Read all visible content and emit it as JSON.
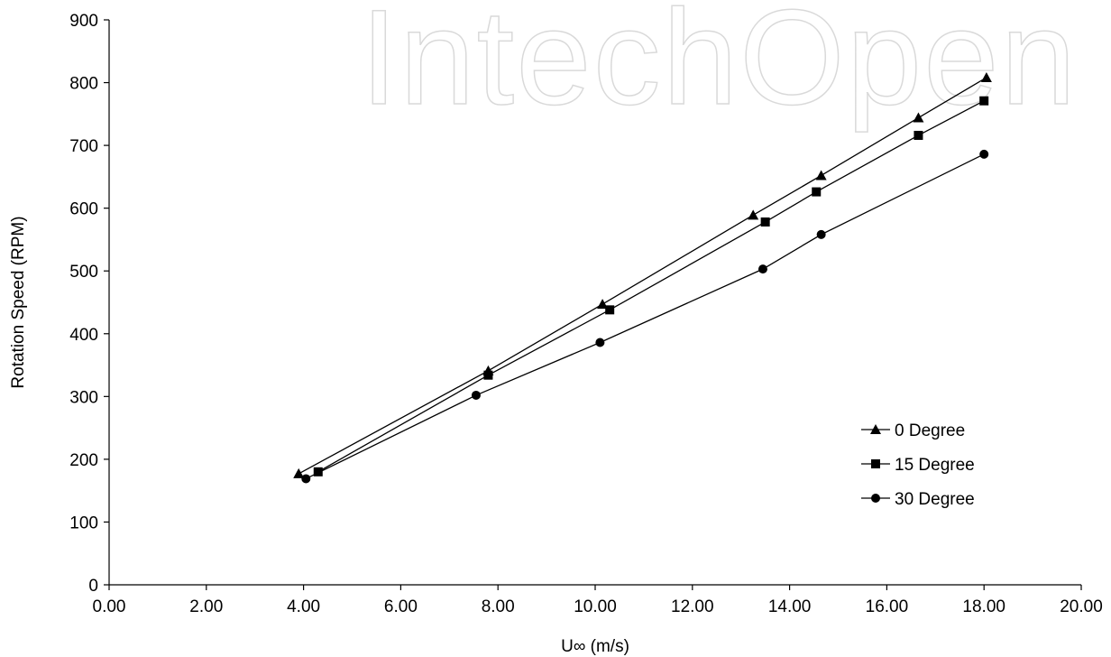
{
  "watermark_text": "IntechOpen",
  "chart_data": {
    "type": "line",
    "xlabel": "U∞ (m/s)",
    "ylabel": "Rotation Speed (RPM)",
    "xlim": [
      0,
      20
    ],
    "ylim": [
      0,
      900
    ],
    "x_ticks": [
      "0.00",
      "2.00",
      "4.00",
      "6.00",
      "8.00",
      "10.00",
      "12.00",
      "14.00",
      "16.00",
      "18.00",
      "20.00"
    ],
    "y_ticks": [
      "0",
      "100",
      "200",
      "300",
      "400",
      "500",
      "600",
      "700",
      "800",
      "900"
    ],
    "grid": false,
    "legend_position": "lower-right",
    "series": [
      {
        "name": "0 Degree",
        "marker": "triangle",
        "x": [
          3.9,
          7.8,
          10.15,
          13.25,
          14.65,
          16.65,
          18.05
        ],
        "y": [
          177,
          341,
          447,
          589,
          652,
          744,
          808
        ]
      },
      {
        "name": "15 Degree",
        "marker": "square",
        "x": [
          4.3,
          7.8,
          10.3,
          13.5,
          14.55,
          16.65,
          18.0
        ],
        "y": [
          180,
          334,
          438,
          578,
          626,
          716,
          771
        ]
      },
      {
        "name": "30 Degree",
        "marker": "circle",
        "x": [
          4.05,
          7.55,
          10.1,
          13.45,
          14.65,
          18.0
        ],
        "y": [
          169,
          302,
          386,
          503,
          558,
          686
        ]
      }
    ]
  }
}
